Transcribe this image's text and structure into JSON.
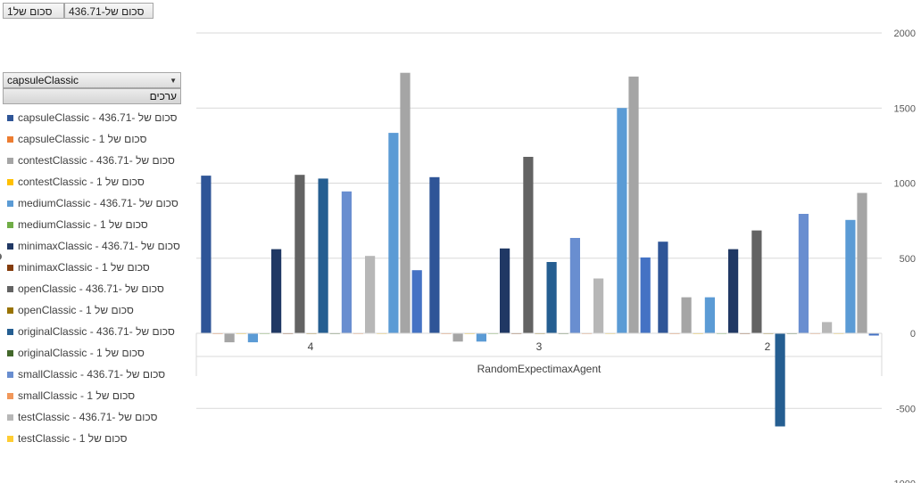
{
  "field_buttons": {
    "sum_of_1": "סכום של1",
    "sum_of_436": "סכום של-436.71"
  },
  "filter": {
    "selected": "capsuleClassic",
    "values_header": "ערכים"
  },
  "chart_data": {
    "type": "bar",
    "categories": [
      "4",
      "3",
      "2"
    ],
    "group_label": "RandomExpectimaxAgent",
    "ylim": [
      -1000,
      2000
    ],
    "yticks": [
      2000,
      1500,
      1000,
      500,
      0,
      -500,
      -1000
    ],
    "grid": true,
    "legend_placement": "left",
    "series": [
      {
        "name": "capsuleClassic - סכום של -436.71",
        "color": "#2f5597",
        "values": [
          1050,
          1040,
          610
        ]
      },
      {
        "name": "capsuleClassic - סכום של 1",
        "color": "#ed7d31",
        "values": [
          1,
          1,
          1
        ]
      },
      {
        "name": "contestClassic - סכום של -436.71",
        "color": "#a5a5a5",
        "values": [
          -60,
          -55,
          240
        ]
      },
      {
        "name": "contestClassic - סכום של 1",
        "color": "#ffc000",
        "values": [
          1,
          1,
          1
        ]
      },
      {
        "name": "mediumClassic - סכום של -436.71",
        "color": "#5b9bd5",
        "values": [
          -60,
          -55,
          240
        ]
      },
      {
        "name": "mediumClassic - סכום של 1",
        "color": "#70ad47",
        "values": [
          1,
          1,
          1
        ]
      },
      {
        "name": "minimaxClassic - סכום של -436.71",
        "color": "#203864",
        "values": [
          560,
          565,
          560
        ]
      },
      {
        "name": "minimaxClassic - סכום של 1",
        "color": "#843c0c",
        "values": [
          1,
          1,
          1
        ]
      },
      {
        "name": "openClassic - סכום של -436.71",
        "color": "#636363",
        "values": [
          1055,
          1175,
          685
        ]
      },
      {
        "name": "openClassic - סכום של 1",
        "color": "#997300",
        "values": [
          1,
          1,
          1
        ]
      },
      {
        "name": "originalClassic - סכום של -436.71",
        "color": "#255e91",
        "values": [
          1030,
          475,
          -620
        ]
      },
      {
        "name": "originalClassic - סכום של 1",
        "color": "#43682b",
        "values": [
          1,
          1,
          1
        ]
      },
      {
        "name": "smallClassic - סכום של -436.71",
        "color": "#698ed0",
        "values": [
          945,
          635,
          795
        ]
      },
      {
        "name": "smallClassic - סכום של 1",
        "color": "#f1975a",
        "values": [
          1,
          1,
          1
        ]
      },
      {
        "name": "testClassic - סכום של -436.71",
        "color": "#b7b7b7",
        "values": [
          515,
          365,
          75
        ]
      },
      {
        "name": "testClassic - סכום של 1",
        "color": "#ffcd33",
        "values": [
          1,
          1,
          1
        ]
      }
    ],
    "extra_bars_note_values": {
      "4": [
        1335,
        1735,
        420
      ],
      "3": [
        1500,
        1710,
        505
      ],
      "2": [
        755,
        935,
        -15
      ]
    }
  }
}
